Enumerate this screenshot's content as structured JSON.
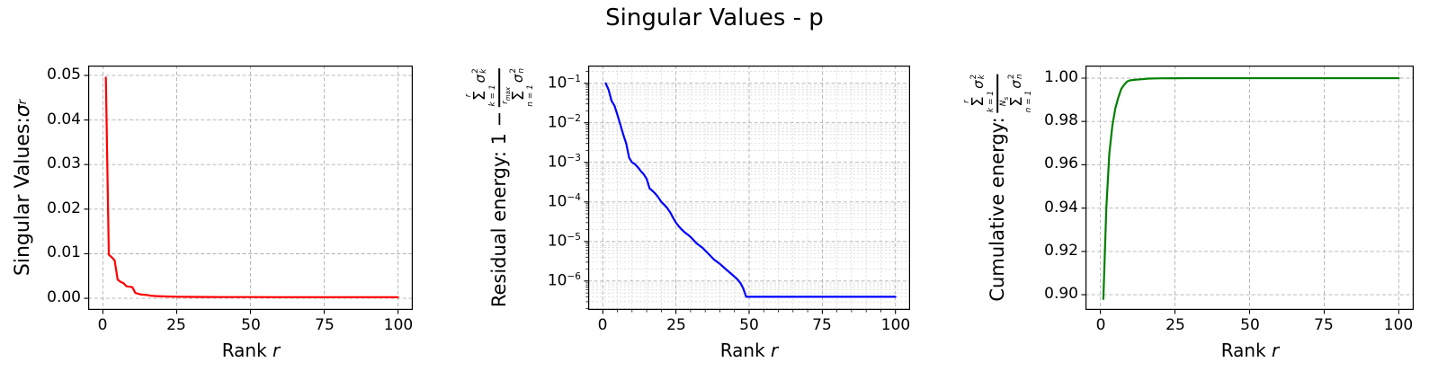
{
  "figure": {
    "title": "Singular Values - p",
    "background": "#ffffff",
    "grid_major_color": "#b0b0b0",
    "grid_minor_color": "#d4d4d4",
    "spine_color": "#000000"
  },
  "chart_data": [
    {
      "type": "line",
      "name": "singular-values",
      "color": "#ff0000",
      "xlabel": {
        "text": "Rank",
        "var": "r"
      },
      "ylabel": {
        "prefix": "Singular Values: ",
        "sym": "σ",
        "sym_sub": "r"
      },
      "xlim": [
        -5,
        105
      ],
      "ylim": [
        -0.0026,
        0.0522
      ],
      "yscale": "linear",
      "xticks": [
        0,
        25,
        50,
        75,
        100
      ],
      "yticks": {
        "values": [
          0,
          0.01,
          0.02,
          0.03,
          0.04,
          0.05
        ],
        "labels": [
          "0.00",
          "0.01",
          "0.02",
          "0.03",
          "0.04",
          "0.05"
        ]
      },
      "grid_minor": false,
      "points": [
        [
          1,
          0.0495
        ],
        [
          2,
          0.0098
        ],
        [
          3,
          0.0092
        ],
        [
          4,
          0.0085
        ],
        [
          5,
          0.0042
        ],
        [
          6,
          0.0037
        ],
        [
          7,
          0.0034
        ],
        [
          8,
          0.0027
        ],
        [
          9,
          0.0026
        ],
        [
          10,
          0.0025
        ],
        [
          11,
          0.0012
        ],
        [
          12,
          0.001
        ],
        [
          13,
          0.00085
        ],
        [
          14,
          0.0008
        ],
        [
          15,
          0.00075
        ],
        [
          16,
          0.0006
        ],
        [
          17,
          0.00055
        ],
        [
          18,
          0.0005
        ],
        [
          20,
          0.00045
        ],
        [
          22,
          0.0004
        ],
        [
          25,
          0.00037
        ],
        [
          30,
          0.00032
        ],
        [
          35,
          0.0003
        ],
        [
          40,
          0.00029
        ],
        [
          50,
          0.00028
        ],
        [
          60,
          0.00027
        ],
        [
          75,
          0.00026
        ],
        [
          100,
          0.00025
        ]
      ]
    },
    {
      "type": "line",
      "name": "residual-energy",
      "color": "#0000ff",
      "xlabel": {
        "text": "Rank",
        "var": "r"
      },
      "ylabel": {
        "prefix": "Residual energy: 1 −",
        "frac": {
          "num": {
            "limit_top": "r",
            "sum": "Σ",
            "limit_bot": "k = 1",
            "body": "σ",
            "sup": "2",
            "sub": "k"
          },
          "den": {
            "limit_top_base": "r",
            "limit_top_sub": "max",
            "sum": "Σ",
            "limit_bot": "n = 1",
            "body": "σ",
            "sup": "2",
            "sub": "n"
          }
        }
      },
      "xlim": [
        -5,
        105
      ],
      "ylim": [
        1.86e-07,
        0.28
      ],
      "yscale": "log",
      "xticks": [
        0,
        25,
        50,
        75,
        100
      ],
      "yticks": {
        "values": [
          0.1,
          0.01,
          0.001,
          0.0001,
          1e-05,
          1e-06
        ],
        "labels": [
          "10^-1",
          "10^-2",
          "10^-3",
          "10^-4",
          "10^-5",
          "10^-6"
        ]
      },
      "grid_minor": true,
      "minor_x_step": 5,
      "points": [
        [
          1,
          0.1
        ],
        [
          2,
          0.068
        ],
        [
          3,
          0.036
        ],
        [
          4,
          0.027
        ],
        [
          5,
          0.016
        ],
        [
          6,
          0.009
        ],
        [
          7,
          0.005
        ],
        [
          8,
          0.003
        ],
        [
          9,
          0.0013
        ],
        [
          10,
          0.001
        ],
        [
          11,
          0.0009
        ],
        [
          12,
          0.00075
        ],
        [
          13,
          0.0006
        ],
        [
          14,
          0.0005
        ],
        [
          15,
          0.00038
        ],
        [
          16,
          0.00022
        ],
        [
          17,
          0.00019
        ],
        [
          18,
          0.00016
        ],
        [
          19,
          0.00013
        ],
        [
          20,
          0.0001
        ],
        [
          21,
          8.5e-05
        ],
        [
          22,
          7e-05
        ],
        [
          23,
          5.5e-05
        ],
        [
          24,
          4e-05
        ],
        [
          25,
          3e-05
        ],
        [
          26,
          2.4e-05
        ],
        [
          27,
          2e-05
        ],
        [
          28,
          1.7e-05
        ],
        [
          29,
          1.5e-05
        ],
        [
          30,
          1.3e-05
        ],
        [
          32,
          9e-06
        ],
        [
          34,
          7e-06
        ],
        [
          36,
          5e-06
        ],
        [
          38,
          3.5e-06
        ],
        [
          40,
          2.7e-06
        ],
        [
          42,
          2e-06
        ],
        [
          44,
          1.5e-06
        ],
        [
          46,
          1.1e-06
        ],
        [
          47,
          9e-07
        ],
        [
          48,
          6.5e-07
        ],
        [
          49,
          4e-07
        ],
        [
          50,
          4e-07
        ],
        [
          60,
          4e-07
        ],
        [
          75,
          4e-07
        ],
        [
          100,
          4e-07
        ]
      ]
    },
    {
      "type": "line",
      "name": "cumulative-energy",
      "color": "#008000",
      "xlabel": {
        "text": "Rank",
        "var": "r"
      },
      "ylabel": {
        "prefix": "Cumulative energy:",
        "frac": {
          "num": {
            "limit_top": "r",
            "sum": "Σ",
            "limit_bot": "k = 1",
            "body": "σ",
            "sup": "2",
            "sub": "k"
          },
          "den": {
            "limit_top_base": "N",
            "limit_top_sub": "s",
            "sum": "Σ",
            "limit_bot": "n = 1",
            "body": "σ",
            "sup": "2",
            "sub": "n"
          }
        }
      },
      "xlim": [
        -5,
        105
      ],
      "ylim": [
        0.893,
        1.0058
      ],
      "yscale": "linear",
      "xticks": [
        0,
        25,
        50,
        75,
        100
      ],
      "yticks": {
        "values": [
          0.9,
          0.92,
          0.94,
          0.96,
          0.98,
          1.0
        ],
        "labels": [
          "0.90",
          "0.92",
          "0.94",
          "0.96",
          "0.98",
          "1.00"
        ]
      },
      "grid_minor": false,
      "points": [
        [
          1,
          0.898
        ],
        [
          2,
          0.94
        ],
        [
          3,
          0.965
        ],
        [
          4,
          0.978
        ],
        [
          5,
          0.986
        ],
        [
          6,
          0.991
        ],
        [
          7,
          0.995
        ],
        [
          8,
          0.997
        ],
        [
          9,
          0.9985
        ],
        [
          10,
          0.999
        ],
        [
          12,
          0.9993
        ],
        [
          14,
          0.9995
        ],
        [
          16,
          0.9998
        ],
        [
          20,
          0.9999
        ],
        [
          25,
          0.99997
        ],
        [
          30,
          0.99999
        ],
        [
          40,
          1.0
        ],
        [
          50,
          1.0
        ],
        [
          75,
          1.0
        ],
        [
          100,
          1.0
        ]
      ]
    }
  ]
}
